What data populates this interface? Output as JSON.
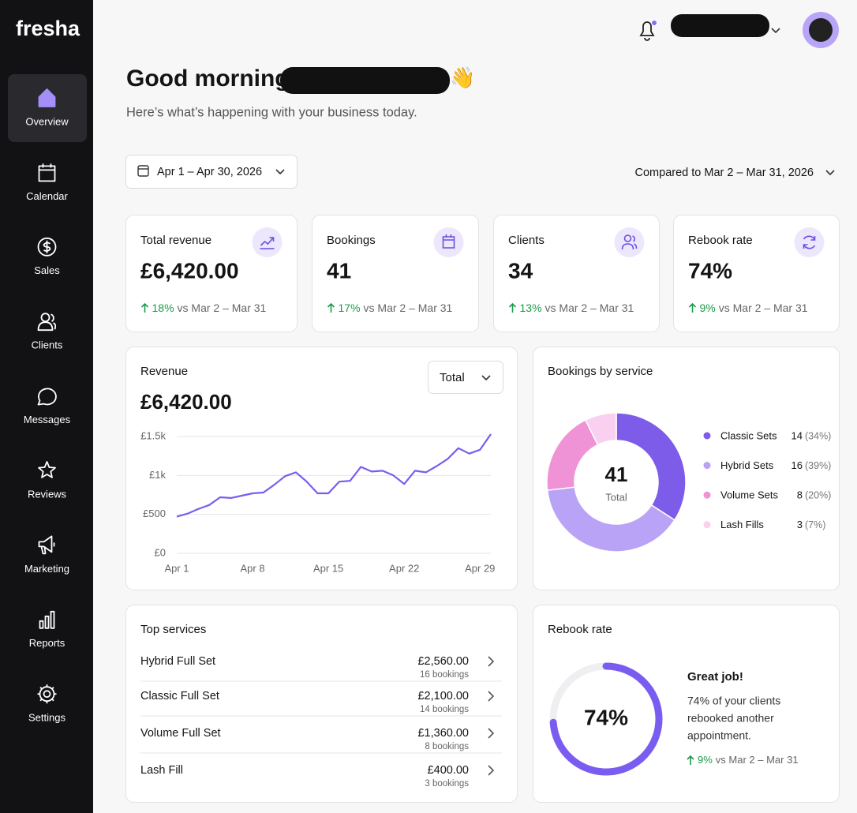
{
  "sidebar": {
    "brand": "fresha",
    "nav": [
      "Overview",
      "Calendar",
      "Sales",
      "Clients",
      "Messages",
      "Reviews",
      "Marketing",
      "Reports",
      "Settings"
    ],
    "active": 0
  },
  "header": {
    "greeting": "Good morning,",
    "emoji": "👋",
    "subtitle": "Here’s what’s happening with your business today."
  },
  "filters": {
    "date_range": "Apr 1 – Apr 30, 2026",
    "comparison": "Compared to Mar 2 – Mar 31, 2026"
  },
  "kpis": [
    {
      "label": "Total revenue",
      "value": "£6,420.00",
      "change": "18%",
      "period": "vs Mar 2 – Mar 31"
    },
    {
      "label": "Bookings",
      "value": "41",
      "change": "17%",
      "period": "vs Mar 2 – Mar 31"
    },
    {
      "label": "Clients",
      "value": "34",
      "change": "13%",
      "period": "vs Mar 2 – Mar 31"
    },
    {
      "label": "Rebook rate",
      "value": "74%",
      "change": "9%",
      "period": "vs Mar 2 – Mar 31"
    }
  ],
  "chart_data": [
    {
      "type": "line",
      "title": "Revenue",
      "total": "£6,420.00",
      "selector": "Total",
      "color": "#7b5cf0",
      "grid": true,
      "x": [
        1,
        2,
        3,
        4,
        5,
        6,
        7,
        8,
        9,
        10,
        11,
        12,
        13,
        14,
        15,
        16,
        17,
        18,
        19,
        20,
        21,
        22,
        23,
        24,
        25,
        26,
        27,
        28,
        29,
        30
      ],
      "values": [
        470,
        510,
        570,
        620,
        720,
        710,
        740,
        770,
        780,
        880,
        990,
        1040,
        920,
        770,
        770,
        920,
        930,
        1110,
        1050,
        1060,
        1000,
        890,
        1060,
        1040,
        1120,
        1210,
        1350,
        1280,
        1330,
        1530
      ],
      "xlim": [
        1,
        30
      ],
      "xticks": [
        {
          "value": 1,
          "label": "Apr 1"
        },
        {
          "value": 8,
          "label": "Apr 8"
        },
        {
          "value": 15,
          "label": "Apr 15"
        },
        {
          "value": 22,
          "label": "Apr 22"
        },
        {
          "value": 29,
          "label": "Apr 29"
        }
      ],
      "ylim": [
        0,
        1500
      ],
      "yticks": [
        {
          "value": 0,
          "label": "£0"
        },
        {
          "value": 500,
          "label": "£500"
        },
        {
          "value": 1000,
          "label": "£1k"
        },
        {
          "value": 1500,
          "label": "£1.5k"
        }
      ]
    },
    {
      "type": "donut",
      "title": "Bookings by service",
      "total": 41,
      "total_label": "Total",
      "categories": [
        "Classic Sets",
        "Hybrid Sets",
        "Volume Sets",
        "Lash Fills"
      ],
      "values": [
        14,
        16,
        8,
        3
      ],
      "share_labels": [
        "(34%)",
        "(39%)",
        "(20%)",
        "(7%)"
      ],
      "colors": [
        "#7c5ce8",
        "#b9a3f6",
        "#ef92d6",
        "#f9d0ef"
      ]
    },
    {
      "type": "gauge",
      "title": "Rebook rate",
      "value": 74,
      "value_label": "74%",
      "range": [
        0,
        100
      ],
      "color": "#7b5cf0",
      "heading": "Great job!",
      "message": [
        "74% of your clients",
        "rebooked another",
        "appointment."
      ],
      "change": "9%",
      "period": "vs Mar 2 – Mar 31"
    }
  ],
  "top_services": {
    "title": "Top services",
    "rows": [
      {
        "name": "Hybrid Full Set",
        "amount": "£2,560.00",
        "bookings": "16 bookings"
      },
      {
        "name": "Classic Full Set",
        "amount": "£2,100.00",
        "bookings": "14 bookings"
      },
      {
        "name": "Volume Full Set",
        "amount": "£1,360.00",
        "bookings": "8 bookings"
      },
      {
        "name": "Lash Fill",
        "amount": "£400.00",
        "bookings": "3 bookings"
      }
    ]
  }
}
